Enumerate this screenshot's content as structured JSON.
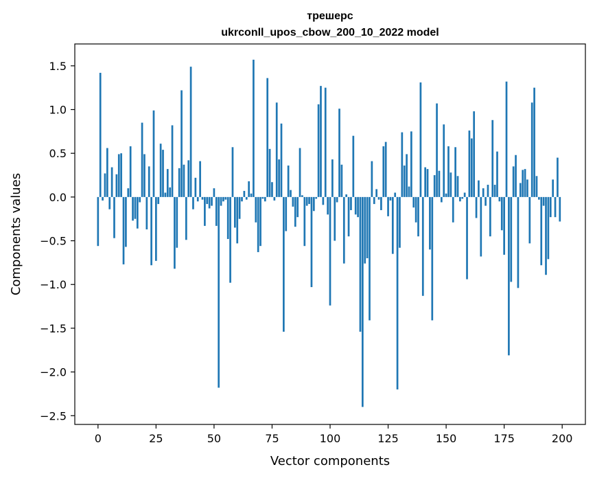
{
  "chart_data": {
    "type": "bar",
    "title": "трешерс",
    "subtitle": "ukrconll_upos_cbow_200_10_2022 model",
    "xlabel": "Vector components",
    "ylabel": "Components values",
    "xlim": [
      -10,
      210
    ],
    "ylim": [
      -2.6,
      1.75
    ],
    "xticks": [
      0,
      25,
      50,
      75,
      100,
      125,
      150,
      175,
      200
    ],
    "yticks": [
      -2.5,
      -2.0,
      -1.5,
      -1.0,
      -0.5,
      0.0,
      0.5,
      1.0,
      1.5
    ],
    "ytick_labels": [
      "−2.5",
      "−2.0",
      "−1.5",
      "−1.0",
      "−0.5",
      "0.0",
      "0.5",
      "1.0",
      "1.5"
    ],
    "grid": false,
    "bar_color": "#1f77b4",
    "x": [
      0,
      1,
      2,
      3,
      4,
      5,
      6,
      7,
      8,
      9,
      10,
      11,
      12,
      13,
      14,
      15,
      16,
      17,
      18,
      19,
      20,
      21,
      22,
      23,
      24,
      25,
      26,
      27,
      28,
      29,
      30,
      31,
      32,
      33,
      34,
      35,
      36,
      37,
      38,
      39,
      40,
      41,
      42,
      43,
      44,
      45,
      46,
      47,
      48,
      49,
      50,
      51,
      52,
      53,
      54,
      55,
      56,
      57,
      58,
      59,
      60,
      61,
      62,
      63,
      64,
      65,
      66,
      67,
      68,
      69,
      70,
      71,
      72,
      73,
      74,
      75,
      76,
      77,
      78,
      79,
      80,
      81,
      82,
      83,
      84,
      85,
      86,
      87,
      88,
      89,
      90,
      91,
      92,
      93,
      94,
      95,
      96,
      97,
      98,
      99,
      100,
      101,
      102,
      103,
      104,
      105,
      106,
      107,
      108,
      109,
      110,
      111,
      112,
      113,
      114,
      115,
      116,
      117,
      118,
      119,
      120,
      121,
      122,
      123,
      124,
      125,
      126,
      127,
      128,
      129,
      130,
      131,
      132,
      133,
      134,
      135,
      136,
      137,
      138,
      139,
      140,
      141,
      142,
      143,
      144,
      145,
      146,
      147,
      148,
      149,
      150,
      151,
      152,
      153,
      154,
      155,
      156,
      157,
      158,
      159,
      160,
      161,
      162,
      163,
      164,
      165,
      166,
      167,
      168,
      169,
      170,
      171,
      172,
      173,
      174,
      175,
      176,
      177,
      178,
      179,
      180,
      181,
      182,
      183,
      184,
      185,
      186,
      187,
      188,
      189,
      190,
      191,
      192,
      193,
      194,
      195,
      196,
      197,
      198,
      199
    ],
    "values": [
      -0.56,
      1.42,
      -0.04,
      0.27,
      0.56,
      -0.14,
      0.34,
      -0.47,
      0.26,
      0.49,
      0.5,
      -0.77,
      -0.57,
      0.1,
      0.58,
      -0.27,
      -0.25,
      -0.36,
      -0.06,
      0.85,
      0.49,
      -0.37,
      0.35,
      -0.78,
      0.99,
      -0.73,
      -0.08,
      0.61,
      0.54,
      0.05,
      0.32,
      0.11,
      0.82,
      -0.82,
      -0.58,
      0.33,
      1.22,
      0.37,
      -0.49,
      0.42,
      1.49,
      -0.14,
      0.22,
      -0.05,
      0.41,
      -0.03,
      -0.33,
      -0.08,
      -0.13,
      -0.1,
      0.1,
      -0.33,
      -2.18,
      -0.1,
      -0.05,
      -0.03,
      -0.48,
      -0.98,
      0.57,
      -0.35,
      -0.53,
      -0.25,
      -0.05,
      0.07,
      -0.03,
      0.18,
      0.04,
      1.57,
      -0.29,
      -0.63,
      -0.56,
      -0.02,
      -0.05,
      1.36,
      0.55,
      0.17,
      -0.04,
      1.08,
      0.43,
      0.84,
      -1.54,
      -0.39,
      0.36,
      0.08,
      -0.11,
      -0.34,
      -0.23,
      0.56,
      0.02,
      -0.56,
      -0.1,
      -0.08,
      -1.03,
      -0.16,
      -0.02,
      1.06,
      1.27,
      -0.09,
      1.25,
      -0.2,
      -1.24,
      0.43,
      -0.5,
      -0.06,
      1.01,
      0.37,
      -0.76,
      0.03,
      -0.45,
      -0.15,
      0.7,
      -0.2,
      -0.23,
      -1.54,
      -2.4,
      -0.76,
      -0.7,
      -1.41,
      0.41,
      -0.08,
      0.09,
      -0.03,
      -0.15,
      0.58,
      0.63,
      -0.22,
      -0.04,
      -0.65,
      0.05,
      -2.2,
      -0.58,
      0.74,
      0.36,
      0.49,
      0.12,
      0.75,
      -0.12,
      -0.29,
      -0.45,
      1.31,
      -1.13,
      0.34,
      0.32,
      -0.6,
      -1.41,
      0.25,
      1.07,
      0.3,
      -0.06,
      0.83,
      0.04,
      0.58,
      0.28,
      -0.29,
      0.57,
      0.24,
      -0.05,
      -0.02,
      0.05,
      -0.94,
      0.76,
      0.67,
      0.98,
      -0.24,
      0.19,
      -0.68,
      0.1,
      -0.1,
      0.14,
      -0.45,
      0.88,
      0.14,
      0.52,
      -0.05,
      -0.38,
      -0.66,
      1.32,
      -1.81,
      -0.97,
      0.35,
      0.48,
      -1.04,
      0.16,
      0.31,
      0.32,
      0.2,
      -0.53,
      1.08,
      1.25,
      0.24,
      -0.03,
      -0.78,
      -0.1,
      -0.89,
      -0.71,
      -0.23,
      0.2,
      -0.23,
      0.45,
      -0.28
    ]
  }
}
